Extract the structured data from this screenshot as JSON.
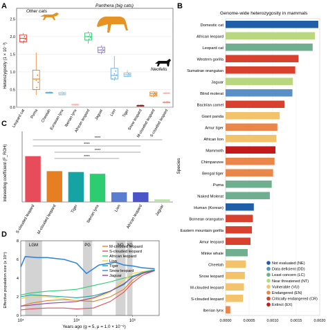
{
  "panel_labels": [
    "A",
    "B",
    "C",
    "D"
  ],
  "chart_data": [
    {
      "panel": "A",
      "type": "box",
      "ylabel": "Heterozygosity (1 × 10⁻³)",
      "ylim": [
        0,
        2.8
      ],
      "yticks": [
        0,
        0.5,
        1.0,
        1.5,
        2.0,
        2.5
      ],
      "groups": [
        "Other cats",
        "Panthera (big cats)",
        "Neofelis"
      ],
      "categories": [
        "Leopard cat",
        "Puma",
        "Cheetah",
        "Eurasian lynx",
        "Iberian lynx",
        "African leopard",
        "Jaguar",
        "Lion",
        "Tiger",
        "Snow leopard",
        "M-clouded leopard",
        "S-clouded leopard"
      ],
      "box_colors": [
        "#e74c3c",
        "#e67e22",
        "#5dade2",
        "#a9cce3",
        "#f5b7b1",
        "#2ecc71",
        "#8e7cc3",
        "#5dade2",
        "#85c1e9",
        "#7b241c",
        "#e67e22",
        "#f1948a"
      ],
      "medians": [
        1.95,
        0.8,
        0.42,
        0.38,
        0.08,
        2.0,
        1.62,
        0.9,
        0.92,
        0.05,
        0.38,
        0.4
      ],
      "q1": [
        1.85,
        0.5,
        0.42,
        0.35,
        0.08,
        1.9,
        1.55,
        0.8,
        0.87,
        0.05,
        0.32,
        0.15
      ],
      "q3": [
        2.05,
        1.05,
        0.42,
        0.42,
        0.08,
        2.1,
        1.7,
        1.1,
        0.97,
        0.05,
        0.43,
        0.15
      ],
      "whisker_low": [
        1.8,
        0.35,
        0.42,
        0.33,
        0.08,
        1.8,
        1.5,
        0.75,
        0.85,
        0.05,
        0.28,
        0.15
      ],
      "whisker_high": [
        2.1,
        1.55,
        0.42,
        0.45,
        0.08,
        2.15,
        1.75,
        1.45,
        1.05,
        0.05,
        0.45,
        0.15
      ]
    },
    {
      "panel": "B",
      "type": "bar",
      "title": "Genome-wide heterozygosity in mammals",
      "ylabel": "Species",
      "xlim": [
        0,
        0.002
      ],
      "xticks": [
        "0.0000",
        "0.0005",
        "0.0010",
        "0.0015",
        "0.0020"
      ],
      "categories": [
        "Domestic cat",
        "African leopard",
        "Leopard cat",
        "Western gorilla",
        "Sumatran orangutan",
        "Jaguar",
        "Blind molerat",
        "Bactrian camel",
        "Giant panda",
        "Amur tiger",
        "African lion",
        "Mammoth",
        "Chimpanzee",
        "Bengal tiger",
        "Puma",
        "Naked Molerat",
        "Human (Korean)",
        "Bornean orangutan",
        "Eastern mountain gorilla",
        "Amur leopard",
        "Minke whale",
        "Cheetah",
        "Snow leopard",
        "M-clouded leopard",
        "S-clouded leopard",
        "Iberian lynx"
      ],
      "values": [
        0.00197,
        0.0019,
        0.00185,
        0.00155,
        0.00148,
        0.00143,
        0.00142,
        0.00125,
        0.00115,
        0.0011,
        0.00108,
        0.00106,
        0.00104,
        0.00101,
        0.00098,
        0.00094,
        0.0006,
        0.00058,
        0.00056,
        0.00053,
        0.00047,
        0.00043,
        0.00041,
        0.00039,
        0.00037,
        0.0001
      ],
      "status": [
        "NE",
        "NT",
        "LC",
        "CR",
        "CR",
        "NT",
        "DD",
        "CR",
        "VU",
        "EN",
        "VU",
        "EX",
        "EN",
        "EN",
        "LC",
        "LC",
        "NE",
        "CR",
        "CR",
        "CR",
        "LC",
        "VU",
        "VU",
        "VU",
        "VU",
        "EN"
      ],
      "legend": [
        {
          "code": "NE",
          "label": "Not evaluated (NE)",
          "color": "#1f5fa8"
        },
        {
          "code": "DD",
          "label": "Data deficient (DD)",
          "color": "#5a8fc7"
        },
        {
          "code": "LC",
          "label": "Least concern (LC)",
          "color": "#6fae8f"
        },
        {
          "code": "NT",
          "label": "Near threatened (NT)",
          "color": "#b9d77f"
        },
        {
          "code": "VU",
          "label": "Vulnerable (VU)",
          "color": "#f2c36b"
        },
        {
          "code": "EN",
          "label": "Endangered (EN)",
          "color": "#e9874b"
        },
        {
          "code": "CR",
          "label": "Critically endangered (CR)",
          "color": "#d9412f"
        },
        {
          "code": "EX",
          "label": "Extinct (EX)",
          "color": "#c41a1a"
        }
      ]
    },
    {
      "panel": "C",
      "type": "bar",
      "ylabel": "Inbreeding coefficient (F_ROH)",
      "ylim": [
        0,
        0.8
      ],
      "categories": [
        "S-clouded leopard",
        "M-clouded leopard",
        "Tiger",
        "Iberian lynx",
        "Lion",
        "African leopard",
        "Jaguar"
      ],
      "values": [
        0.52,
        0.35,
        0.34,
        0.32,
        0.11,
        0.11,
        0.03
      ],
      "colors": [
        "#e74c5b",
        "#e67e22",
        "#16a3a3",
        "#2ecc71",
        "#5b7dd0",
        "#4a56c8",
        "#b9e3a8"
      ],
      "significance": [
        {
          "from": "S-clouded leopard",
          "to": "Jaguar",
          "label": "****"
        },
        {
          "from": "S-clouded leopard",
          "to": "African leopard",
          "label": "****"
        },
        {
          "from": "M-clouded leopard",
          "to": "African leopard",
          "label": "****"
        },
        {
          "from": "M-clouded leopard",
          "to": "Lion",
          "label": "****"
        }
      ]
    },
    {
      "panel": "D",
      "type": "line",
      "xlabel": "Years ago (g = 5, μ = 1.0 × 10⁻⁸)",
      "ylabel": "Effective population size (x 10⁴)",
      "xscale": "log",
      "xlim": [
        10000,
        3000000
      ],
      "ylim": [
        0,
        8
      ],
      "yticks": [
        0,
        2,
        4,
        6,
        8
      ],
      "xtick_labels": [
        "10⁴",
        "10⁵",
        "10⁶"
      ],
      "shaded_periods": [
        {
          "label": "LGM",
          "from": 12000,
          "to": 24000
        },
        {
          "label": "PG",
          "from": 130000,
          "to": 190000
        },
        {
          "label": "NG",
          "from": 500000,
          "to": 750000
        },
        {
          "label": "XG",
          "from": 800000,
          "to": 1000000
        }
      ],
      "series": [
        {
          "name": "M-clouded leopard",
          "color": "#e67e22",
          "x": [
            10000,
            15000,
            30000,
            60000,
            100000,
            200000,
            400000,
            700000,
            1000000,
            1500000,
            2500000
          ],
          "y": [
            1.0,
            1.3,
            1.6,
            1.7,
            1.6,
            1.5,
            2.0,
            2.8,
            3.8,
            4.5,
            4.8
          ]
        },
        {
          "name": "S-clouded leopard",
          "color": "#e74c5b",
          "x": [
            10000,
            15000,
            30000,
            60000,
            100000,
            200000,
            400000,
            700000,
            1000000,
            1500000,
            2500000
          ],
          "y": [
            0.6,
            0.7,
            0.8,
            0.8,
            0.7,
            0.8,
            1.5,
            2.5,
            3.5,
            4.3,
            4.8
          ]
        },
        {
          "name": "African leopard",
          "color": "#2ecc71",
          "x": [
            10000,
            15000,
            30000,
            60000,
            100000,
            200000,
            400000,
            700000,
            1000000,
            1500000,
            2500000
          ],
          "y": [
            2.2,
            2.4,
            2.6,
            2.7,
            2.8,
            3.2,
            3.6,
            4.0,
            4.2,
            4.6,
            4.8
          ]
        },
        {
          "name": "Lion",
          "color": "#f4d03f",
          "x": [
            10000,
            15000,
            30000,
            60000,
            100000,
            200000,
            400000,
            700000,
            1000000,
            1500000,
            2500000
          ],
          "y": [
            1.8,
            2.0,
            2.0,
            1.8,
            1.6,
            1.8,
            2.5,
            3.8,
            4.5,
            4.7,
            4.9
          ]
        },
        {
          "name": "Tiger",
          "color": "#16a3a3",
          "x": [
            10000,
            15000,
            30000,
            60000,
            100000,
            200000,
            400000,
            700000,
            1000000,
            1500000,
            2500000
          ],
          "y": [
            2.0,
            2.2,
            2.1,
            2.0,
            1.9,
            2.1,
            2.6,
            3.3,
            4.2,
            4.6,
            4.9
          ]
        },
        {
          "name": "Snow leopard",
          "color": "#2e86de",
          "x": [
            10000,
            12000,
            20000,
            30000,
            60000,
            100000,
            150000,
            250000,
            500000,
            700000,
            1000000,
            1500000,
            2500000
          ],
          "y": [
            5.2,
            6.3,
            6.2,
            6.2,
            6.0,
            5.6,
            4.5,
            5.4,
            5.7,
            5.4,
            5.3,
            5.1,
            5.0
          ]
        },
        {
          "name": "Jaguar",
          "color": "#8e44ad",
          "x": [
            10000,
            15000,
            30000,
            60000,
            100000,
            200000,
            400000,
            700000,
            1000000,
            1500000,
            2500000
          ],
          "y": [
            1.0,
            1.1,
            1.3,
            1.4,
            1.5,
            1.9,
            2.6,
            3.4,
            4.1,
            4.5,
            4.8
          ]
        }
      ]
    }
  ]
}
